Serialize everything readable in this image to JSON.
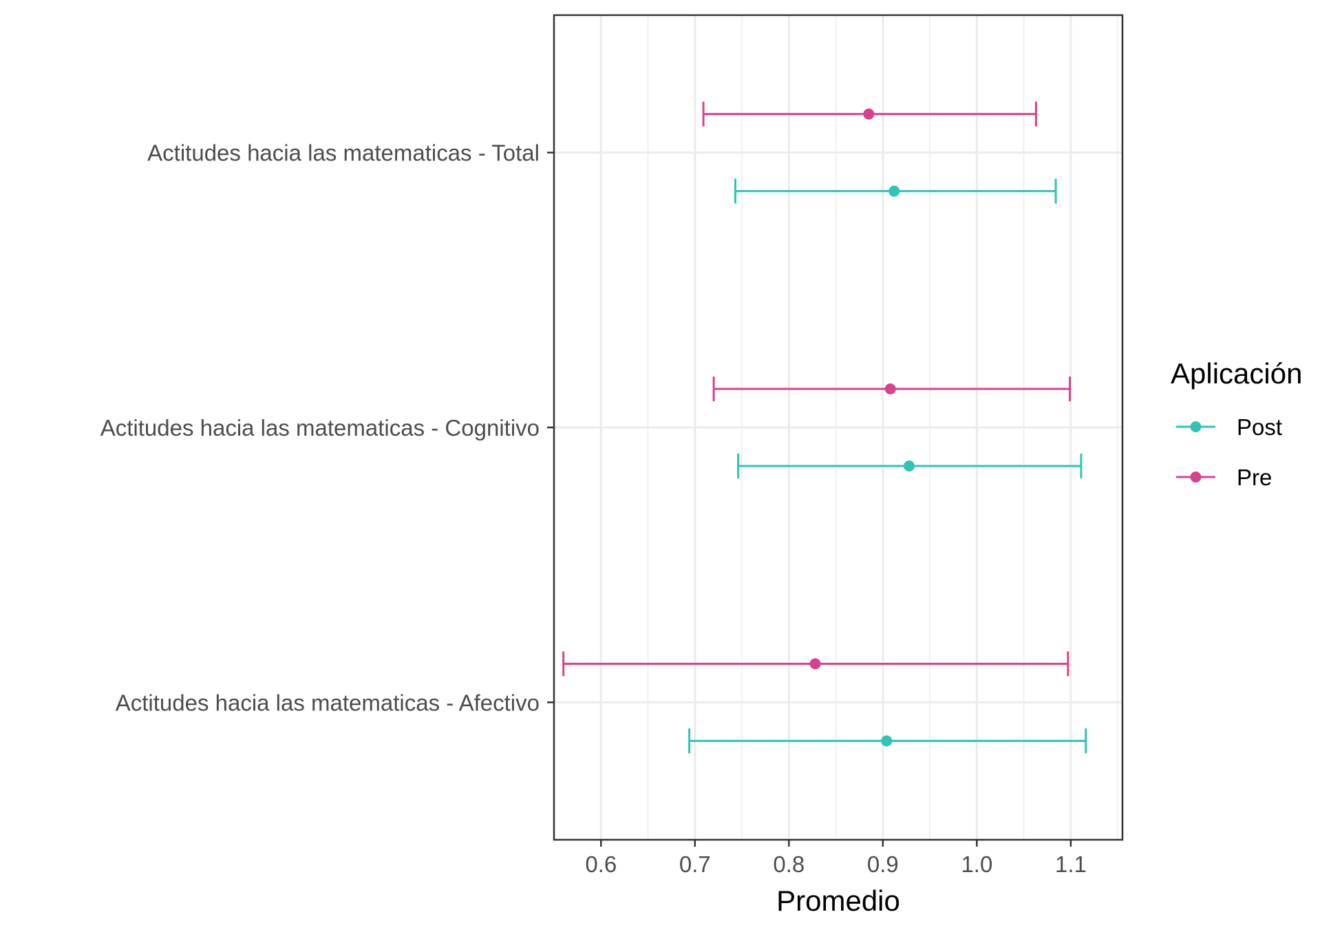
{
  "chart_data": {
    "type": "errorbar",
    "orientation": "horizontal",
    "xlabel": "Promedio",
    "ylabel": "",
    "xlim": [
      0.55,
      1.155
    ],
    "x_ticks": [
      0.6,
      0.7,
      0.8,
      0.9,
      1.0,
      1.1
    ],
    "x_tick_labels": [
      "0.6",
      "0.7",
      "0.8",
      "0.9",
      "1.0",
      "1.1"
    ],
    "grid": true,
    "legend_position": "right",
    "legend": {
      "title": "Aplicación",
      "entries": [
        "Post",
        "Pre"
      ]
    },
    "categories": [
      "Actitudes hacia las matematicas - Total",
      "Actitudes hacia las matematicas - Cognitivo",
      "Actitudes hacia las matematicas - Afectivo"
    ],
    "series": [
      {
        "name": "Post",
        "color": "#2EC4B6",
        "mean": [
          0.912,
          0.928,
          0.904
        ],
        "lower": [
          0.743,
          0.746,
          0.694
        ],
        "upper": [
          1.084,
          1.111,
          1.116
        ]
      },
      {
        "name": "Pre",
        "color": "#D6428E",
        "mean": [
          0.885,
          0.908,
          0.828
        ],
        "lower": [
          0.709,
          0.72,
          0.56
        ],
        "upper": [
          1.063,
          1.099,
          1.097
        ]
      }
    ]
  }
}
